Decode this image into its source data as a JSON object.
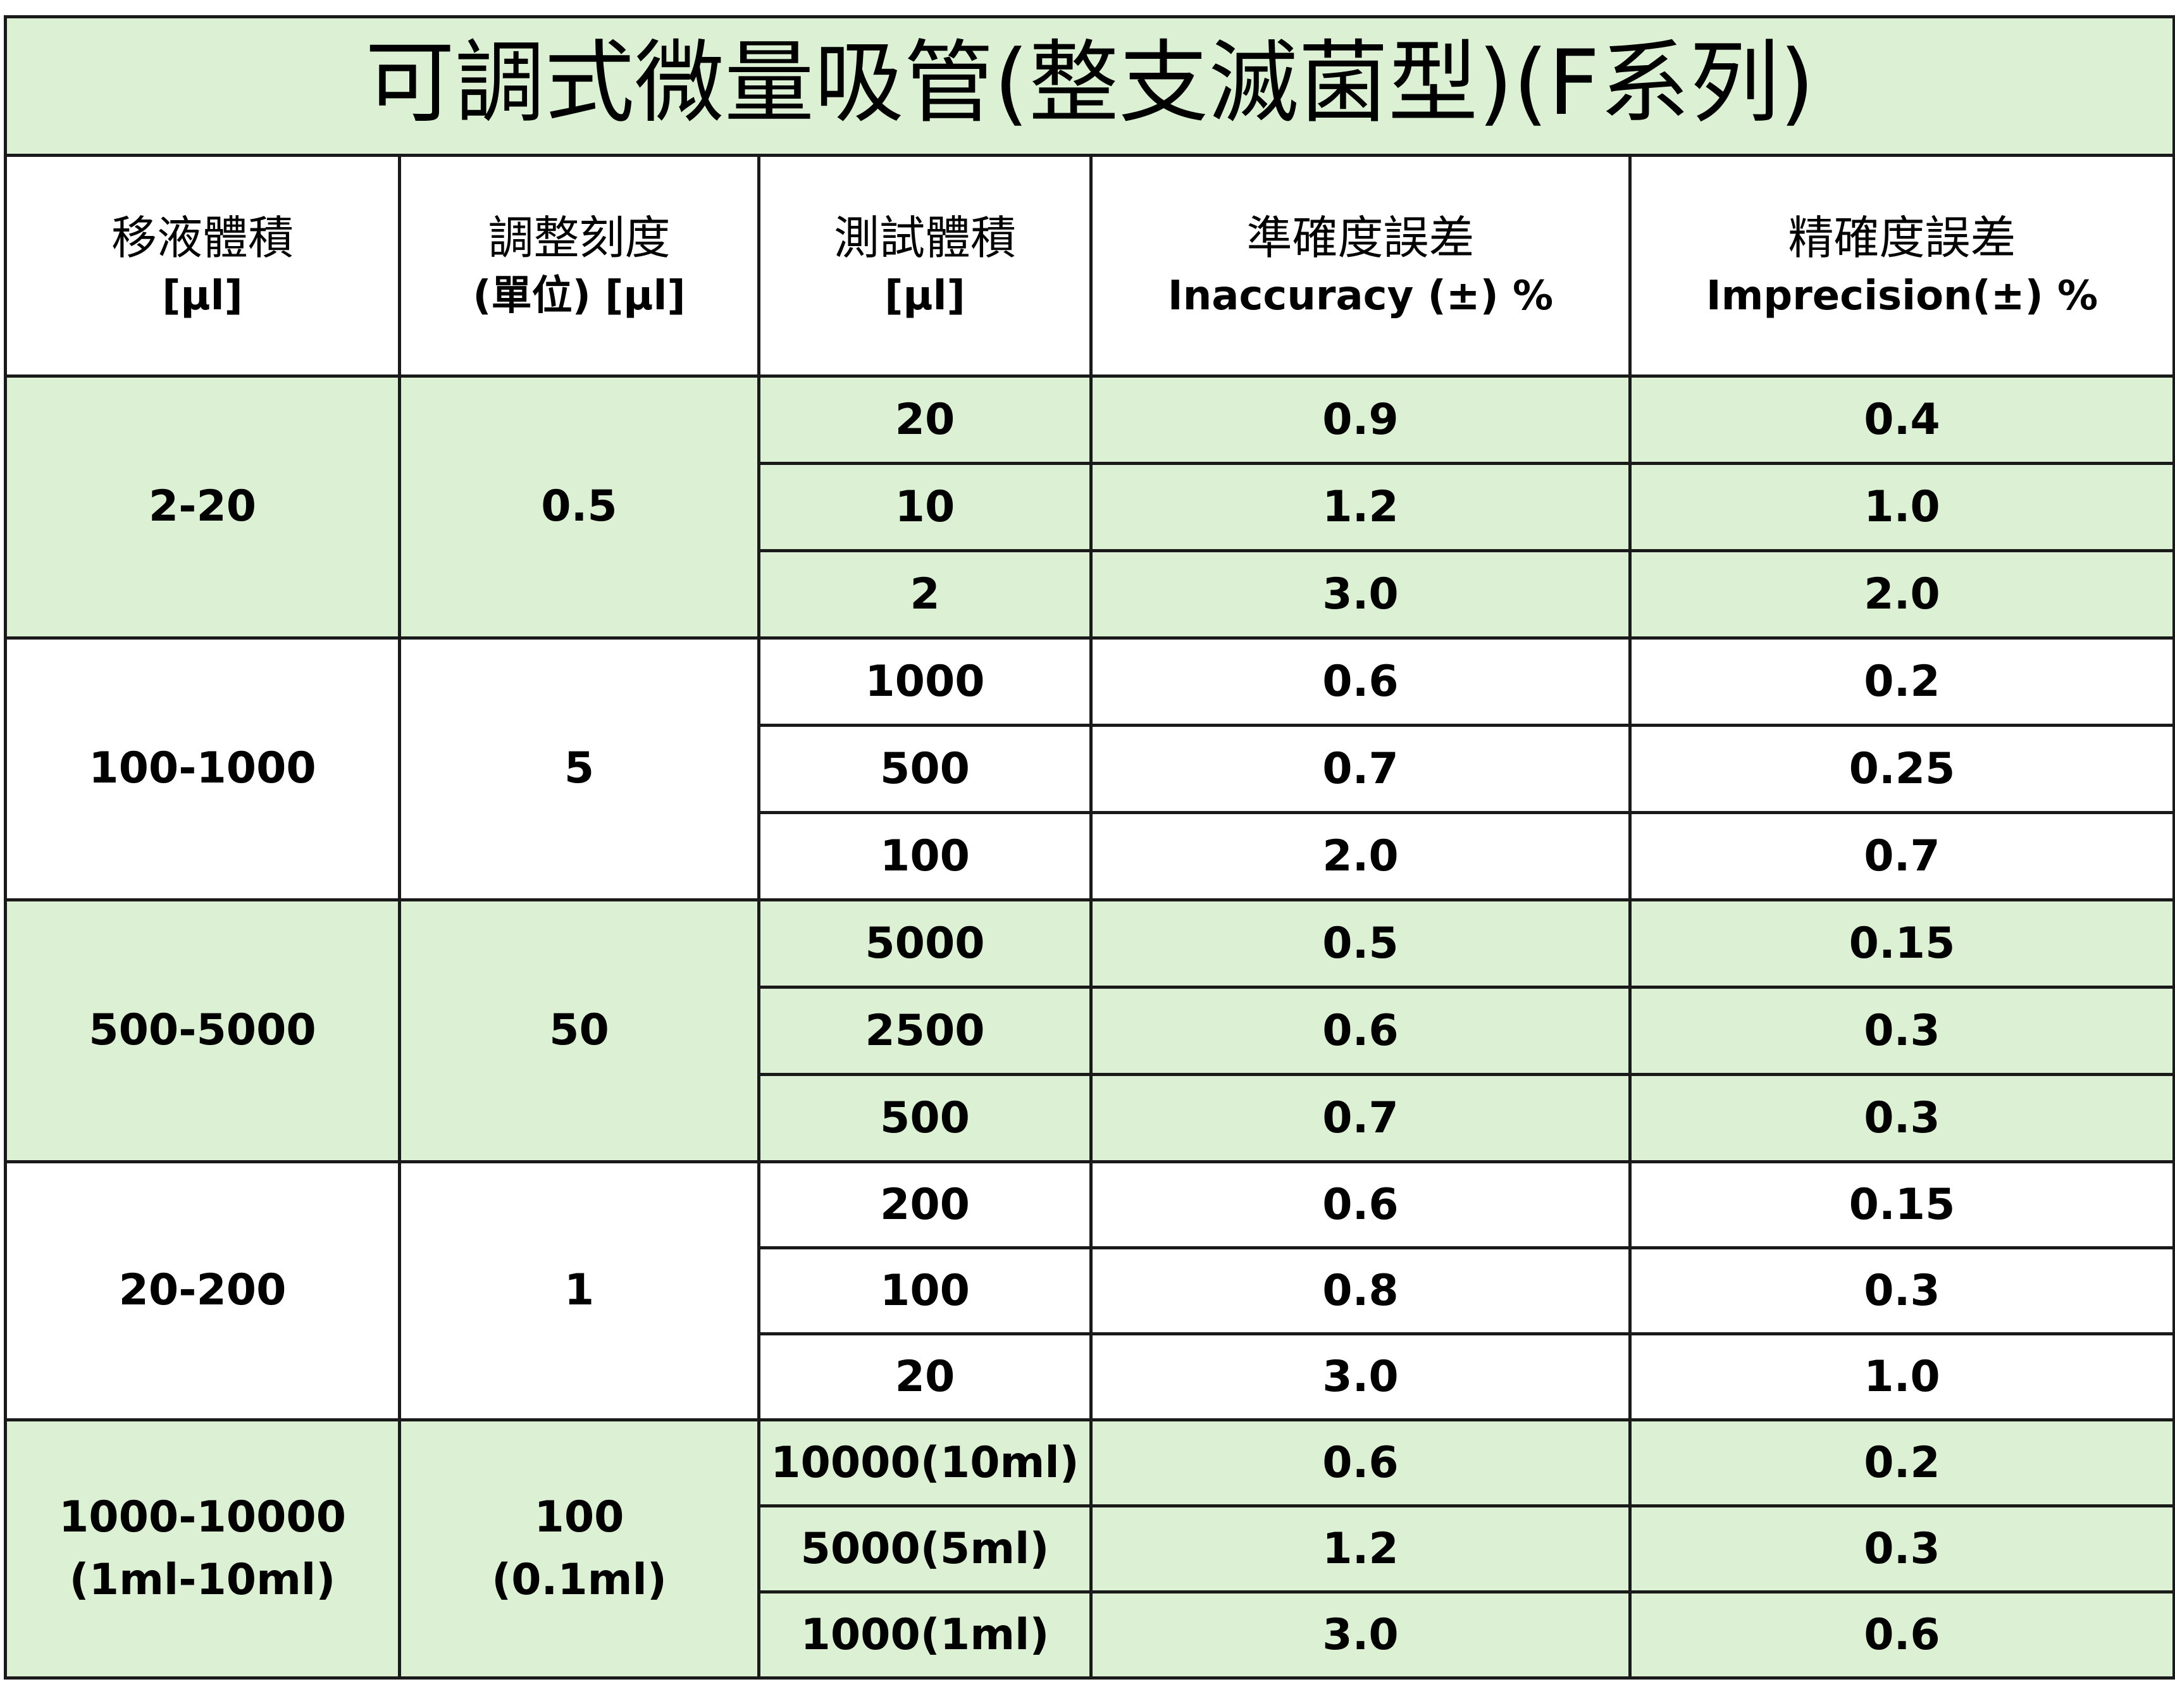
{
  "title": "可調式微量吸管(整支滅菌型)(F系列)",
  "headers": [
    {
      "cn": "移液體積",
      "en": "[μl]"
    },
    {
      "cn": "調整刻度",
      "en": "(單位) [μl]"
    },
    {
      "cn": "測試體積",
      "en": "[μl]"
    },
    {
      "cn": "準確度誤差",
      "en": "Inaccuracy (±) %"
    },
    {
      "cn": "精確度誤差",
      "en": "Imprecision(±) %"
    }
  ],
  "groups": [
    {
      "range": "2-20",
      "range_sub": "",
      "scale": "0.5",
      "scale_sub": "",
      "shade": "green",
      "rows": [
        {
          "test": "20",
          "inaccuracy": "0.9",
          "imprecision": "0.4"
        },
        {
          "test": "10",
          "inaccuracy": "1.2",
          "imprecision": "1.0"
        },
        {
          "test": "2",
          "inaccuracy": "3.0",
          "imprecision": "2.0"
        }
      ]
    },
    {
      "range": "100-1000",
      "range_sub": "",
      "scale": "5",
      "scale_sub": "",
      "shade": "white",
      "rows": [
        {
          "test": "1000",
          "inaccuracy": "0.6",
          "imprecision": "0.2"
        },
        {
          "test": "500",
          "inaccuracy": "0.7",
          "imprecision": "0.25"
        },
        {
          "test": "100",
          "inaccuracy": "2.0",
          "imprecision": "0.7"
        }
      ]
    },
    {
      "range": "500-5000",
      "range_sub": "",
      "scale": "50",
      "scale_sub": "",
      "shade": "green",
      "rows": [
        {
          "test": "5000",
          "inaccuracy": "0.5",
          "imprecision": "0.15"
        },
        {
          "test": "2500",
          "inaccuracy": "0.6",
          "imprecision": "0.3"
        },
        {
          "test": "500",
          "inaccuracy": "0.7",
          "imprecision": "0.3"
        }
      ]
    },
    {
      "range": "20-200",
      "range_sub": "",
      "scale": "1",
      "scale_sub": "",
      "shade": "white",
      "rows": [
        {
          "test": "200",
          "inaccuracy": "0.6",
          "imprecision": "0.15"
        },
        {
          "test": "100",
          "inaccuracy": "0.8",
          "imprecision": "0.3"
        },
        {
          "test": "20",
          "inaccuracy": "3.0",
          "imprecision": "1.0"
        }
      ]
    },
    {
      "range": "1000-10000",
      "range_sub": "(1ml-10ml)",
      "scale": "100",
      "scale_sub": "(0.1ml)",
      "shade": "green",
      "rows": [
        {
          "test": "10000(10ml)",
          "inaccuracy": "0.6",
          "imprecision": "0.2"
        },
        {
          "test": "5000(5ml)",
          "inaccuracy": "1.2",
          "imprecision": "0.3"
        },
        {
          "test": "1000(1ml)",
          "inaccuracy": "3.0",
          "imprecision": "0.6"
        }
      ]
    }
  ]
}
